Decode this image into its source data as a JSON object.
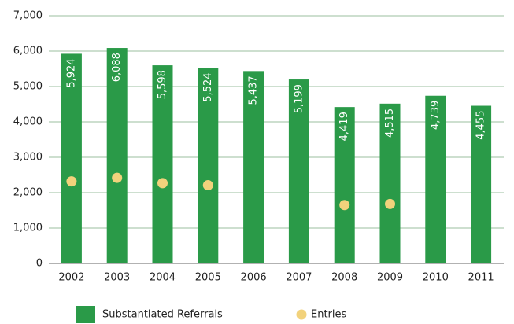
{
  "chart_data": {
    "type": "bar",
    "categories": [
      "2002",
      "2003",
      "2004",
      "2005",
      "2006",
      "2007",
      "2008",
      "2009",
      "2010",
      "2011"
    ],
    "series": [
      {
        "name": "Substantiated Referrals",
        "type": "bar",
        "color": "#2a9a48",
        "values": [
          5924,
          6088,
          5598,
          5524,
          5437,
          5199,
          4419,
          4515,
          4739,
          4455
        ],
        "value_labels": [
          "5,924",
          "6,088",
          "5,598",
          "5,524",
          "5,437",
          "5,199",
          "4,419",
          "4,515",
          "4,739",
          "4,455"
        ]
      },
      {
        "name": "Entries",
        "type": "scatter",
        "color": "#f2d27c",
        "values": [
          2320,
          2420,
          2270,
          2210,
          null,
          null,
          1650,
          1680,
          null,
          null
        ]
      }
    ],
    "ylim": [
      0,
      7000
    ],
    "yticks": [
      0,
      {
        "value": 1000,
        "label": "1,000"
      },
      {
        "value": 2000,
        "label": "2,000"
      },
      {
        "value": 3000,
        "label": "3,000"
      },
      {
        "value": 4000,
        "label": "4,000"
      },
      {
        "value": 5000,
        "label": "5,000"
      },
      {
        "value": 6000,
        "label": "6,000"
      },
      {
        "value": 7000,
        "label": "7,000"
      }
    ],
    "grid": true
  }
}
